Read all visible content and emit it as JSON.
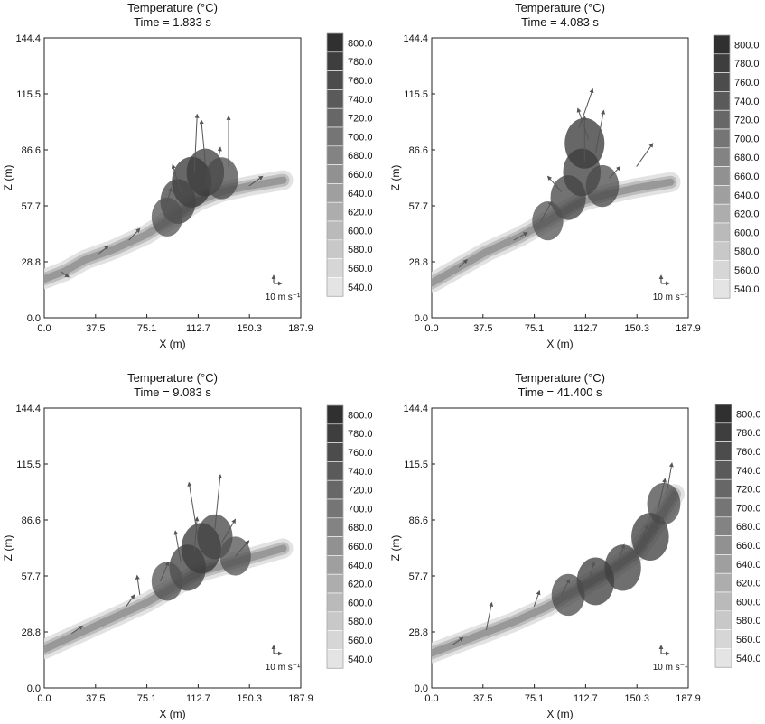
{
  "chart_data": [
    {
      "type": "heatmap",
      "title": "Temperature (°C)",
      "subtitle": "Time = 1.833 s",
      "xlabel": "X (m)",
      "ylabel": "Z (m)",
      "xlim": [
        0,
        187.9
      ],
      "ylim": [
        0,
        144.4
      ],
      "xticks": [
        "0.0",
        "37.5",
        "75.1",
        "112.7",
        "150.3",
        "187.9"
      ],
      "yticks": [
        "0.0",
        "28.8",
        "57.7",
        "86.6",
        "115.5",
        "144.4"
      ],
      "colorbar_ticks": [
        "800.0",
        "780.0",
        "760.0",
        "740.0",
        "720.0",
        "700.0",
        "680.0",
        "660.0",
        "640.0",
        "620.0",
        "600.0",
        "580.0",
        "560.0",
        "540.0"
      ],
      "reference_vector_label": "10 m s⁻¹",
      "grid": false,
      "ridge": [
        [
          0,
          20
        ],
        [
          15,
          24
        ],
        [
          30,
          30
        ],
        [
          50,
          35
        ],
        [
          75,
          43
        ],
        [
          95,
          52
        ],
        [
          112,
          60
        ],
        [
          130,
          65
        ],
        [
          150,
          68
        ],
        [
          175,
          71
        ]
      ],
      "hotspots": [
        [
          108,
          70,
          1.0
        ],
        [
          118,
          75,
          0.9
        ],
        [
          98,
          60,
          0.8
        ],
        [
          130,
          72,
          0.7
        ],
        [
          90,
          52,
          0.6
        ]
      ],
      "vectors": [
        [
          110,
          75,
          2,
          30
        ],
        [
          118,
          80,
          -3,
          22
        ],
        [
          125,
          70,
          4,
          18
        ],
        [
          135,
          78,
          0,
          26
        ],
        [
          100,
          65,
          -6,
          14
        ],
        [
          88,
          55,
          5,
          12
        ],
        [
          62,
          40,
          8,
          6
        ],
        [
          40,
          33,
          7,
          4
        ],
        [
          12,
          24,
          6,
          -3
        ],
        [
          150,
          68,
          10,
          5
        ]
      ]
    },
    {
      "type": "heatmap",
      "title": "Temperature (°C)",
      "subtitle": "Time = 4.083 s",
      "xlabel": "X (m)",
      "ylabel": "Z (m)",
      "xlim": [
        0,
        187.9
      ],
      "ylim": [
        0,
        144.4
      ],
      "xticks": [
        "0.0",
        "37.5",
        "75.1",
        "112.7",
        "150.3",
        "187.9"
      ],
      "yticks": [
        "0.0",
        "28.8",
        "57.7",
        "86.6",
        "115.5",
        "144.4"
      ],
      "colorbar_ticks": [
        "800.0",
        "780.0",
        "760.0",
        "740.0",
        "720.0",
        "700.0",
        "680.0",
        "660.0",
        "640.0",
        "620.0",
        "600.0",
        "580.0",
        "560.0",
        "540.0"
      ],
      "reference_vector_label": "10 m s⁻¹",
      "grid": false,
      "ridge": [
        [
          0,
          18
        ],
        [
          20,
          26
        ],
        [
          40,
          34
        ],
        [
          65,
          42
        ],
        [
          90,
          52
        ],
        [
          110,
          60
        ],
        [
          130,
          64
        ],
        [
          150,
          67
        ],
        [
          175,
          70
        ]
      ],
      "hotspots": [
        [
          112,
          90,
          1.0
        ],
        [
          110,
          75,
          0.9
        ],
        [
          100,
          62,
          0.8
        ],
        [
          125,
          68,
          0.7
        ],
        [
          85,
          50,
          0.6
        ]
      ],
      "vectors": [
        [
          108,
          98,
          10,
          20
        ],
        [
          115,
          92,
          -8,
          16
        ],
        [
          120,
          85,
          6,
          22
        ],
        [
          95,
          65,
          -10,
          8
        ],
        [
          80,
          50,
          8,
          10
        ],
        [
          60,
          40,
          10,
          4
        ],
        [
          130,
          72,
          8,
          6
        ],
        [
          150,
          78,
          12,
          12
        ],
        [
          20,
          26,
          6,
          4
        ],
        [
          112,
          80,
          0,
          24
        ]
      ]
    },
    {
      "type": "heatmap",
      "title": "Temperature (°C)",
      "subtitle": "Time = 9.083 s",
      "xlabel": "X (m)",
      "ylabel": "Z (m)",
      "xlim": [
        0,
        187.9
      ],
      "ylim": [
        0,
        144.4
      ],
      "xticks": [
        "0.0",
        "37.5",
        "75.1",
        "112.7",
        "150.3",
        "187.9"
      ],
      "yticks": [
        "0.0",
        "28.8",
        "57.7",
        "86.6",
        "115.5",
        "144.4"
      ],
      "colorbar_ticks": [
        "800.0",
        "780.0",
        "760.0",
        "740.0",
        "720.0",
        "700.0",
        "680.0",
        "660.0",
        "640.0",
        "620.0",
        "600.0",
        "580.0",
        "560.0",
        "540.0"
      ],
      "reference_vector_label": "10 m s⁻¹",
      "grid": false,
      "ridge": [
        [
          0,
          20
        ],
        [
          25,
          28
        ],
        [
          50,
          36
        ],
        [
          75,
          44
        ],
        [
          95,
          52
        ],
        [
          115,
          60
        ],
        [
          135,
          64
        ],
        [
          155,
          68
        ],
        [
          175,
          72
        ]
      ],
      "hotspots": [
        [
          115,
          72,
          1.0
        ],
        [
          105,
          62,
          0.85
        ],
        [
          125,
          78,
          0.8
        ],
        [
          90,
          55,
          0.6
        ],
        [
          140,
          68,
          0.6
        ]
      ],
      "vectors": [
        [
          112,
          80,
          -6,
          26
        ],
        [
          125,
          82,
          4,
          28
        ],
        [
          130,
          75,
          10,
          12
        ],
        [
          100,
          65,
          -4,
          16
        ],
        [
          85,
          55,
          6,
          10
        ],
        [
          70,
          48,
          -2,
          10
        ],
        [
          20,
          28,
          8,
          4
        ],
        [
          140,
          68,
          10,
          8
        ],
        [
          110,
          70,
          2,
          18
        ],
        [
          60,
          42,
          6,
          6
        ]
      ]
    },
    {
      "type": "heatmap",
      "title": "Temperature (°C)",
      "subtitle": "Time = 41.400 s",
      "xlabel": "X (m)",
      "ylabel": "Z (m)",
      "xlim": [
        0,
        187.9
      ],
      "ylim": [
        0,
        144.4
      ],
      "xticks": [
        "0.0",
        "37.5",
        "75.1",
        "112.7",
        "150.3",
        "187.9"
      ],
      "yticks": [
        "0.0",
        "28.8",
        "57.7",
        "86.6",
        "115.5",
        "144.4"
      ],
      "colorbar_ticks": [
        "800.0",
        "780.0",
        "760.0",
        "740.0",
        "720.0",
        "700.0",
        "680.0",
        "660.0",
        "640.0",
        "620.0",
        "600.0",
        "580.0",
        "560.0",
        "540.0"
      ],
      "reference_vector_label": "10 m s⁻¹",
      "grid": false,
      "ridge": [
        [
          0,
          18
        ],
        [
          30,
          26
        ],
        [
          60,
          34
        ],
        [
          85,
          42
        ],
        [
          110,
          52
        ],
        [
          130,
          60
        ],
        [
          150,
          70
        ],
        [
          165,
          85
        ],
        [
          178,
          100
        ]
      ],
      "hotspots": [
        [
          120,
          55,
          0.9
        ],
        [
          140,
          62,
          0.85
        ],
        [
          160,
          78,
          0.9
        ],
        [
          100,
          48,
          0.7
        ],
        [
          170,
          95,
          0.7
        ]
      ],
      "vectors": [
        [
          165,
          90,
          6,
          18
        ],
        [
          172,
          100,
          4,
          16
        ],
        [
          150,
          70,
          8,
          14
        ],
        [
          135,
          62,
          6,
          12
        ],
        [
          115,
          55,
          4,
          10
        ],
        [
          95,
          48,
          6,
          8
        ],
        [
          75,
          42,
          4,
          8
        ],
        [
          40,
          30,
          4,
          14
        ],
        [
          15,
          22,
          8,
          4
        ],
        [
          160,
          78,
          10,
          10
        ]
      ]
    }
  ]
}
